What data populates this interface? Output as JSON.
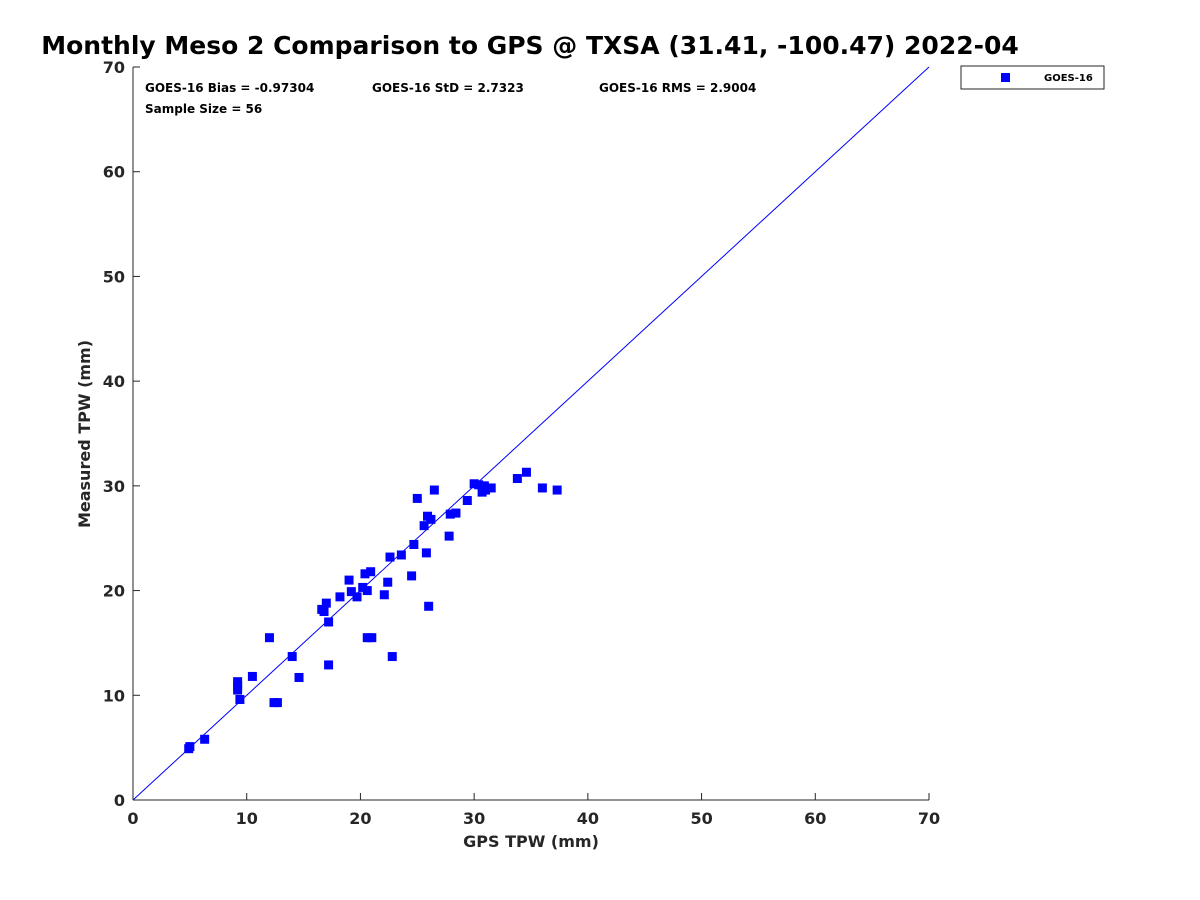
{
  "chart_data": {
    "type": "scatter",
    "title": "Monthly Meso 2 Comparison to GPS @ TXSA (31.41, -100.47) 2022-04",
    "xlabel": "GPS TPW (mm)",
    "ylabel": "Measured TPW (mm)",
    "xlim": [
      0,
      70
    ],
    "ylim": [
      0,
      70
    ],
    "xticks": [
      "0",
      "10",
      "20",
      "30",
      "40",
      "50",
      "60",
      "70"
    ],
    "yticks": [
      "0",
      "10",
      "20",
      "30",
      "40",
      "50",
      "60",
      "70"
    ],
    "grid": false,
    "legend_position": "top-right outside",
    "reference_line": {
      "type": "identity",
      "from": [
        0,
        0
      ],
      "to": [
        70,
        70
      ],
      "color": "#0000ff"
    },
    "annotations": {
      "bias": "GOES-16 Bias = -0.97304",
      "std": "GOES-16 StD = 2.7323",
      "rms": "GOES-16 RMS = 2.9004",
      "sample_size": "Sample Size = 56"
    },
    "series": [
      {
        "name": "GOES-16",
        "color": "#0000ff",
        "marker": "square",
        "points": [
          [
            4.9,
            4.9
          ],
          [
            5.0,
            5.1
          ],
          [
            6.3,
            5.8
          ],
          [
            9.2,
            11.3
          ],
          [
            9.2,
            10.9
          ],
          [
            9.2,
            10.5
          ],
          [
            9.4,
            9.6
          ],
          [
            10.5,
            11.8
          ],
          [
            12.0,
            15.5
          ],
          [
            12.4,
            9.3
          ],
          [
            12.7,
            9.3
          ],
          [
            14.0,
            13.7
          ],
          [
            14.6,
            11.7
          ],
          [
            16.6,
            18.2
          ],
          [
            16.8,
            18.0
          ],
          [
            17.0,
            18.8
          ],
          [
            17.2,
            17.0
          ],
          [
            17.2,
            12.9
          ],
          [
            18.2,
            19.4
          ],
          [
            19.0,
            21.0
          ],
          [
            19.2,
            19.9
          ],
          [
            19.7,
            19.4
          ],
          [
            20.2,
            20.3
          ],
          [
            20.4,
            21.6
          ],
          [
            20.6,
            20.0
          ],
          [
            20.6,
            15.5
          ],
          [
            20.9,
            21.8
          ],
          [
            21.0,
            15.5
          ],
          [
            22.1,
            19.6
          ],
          [
            22.4,
            20.8
          ],
          [
            22.6,
            23.2
          ],
          [
            22.8,
            13.7
          ],
          [
            23.6,
            23.4
          ],
          [
            24.5,
            21.4
          ],
          [
            24.7,
            24.4
          ],
          [
            25.0,
            28.8
          ],
          [
            25.6,
            26.2
          ],
          [
            25.8,
            23.6
          ],
          [
            25.9,
            27.1
          ],
          [
            26.0,
            18.5
          ],
          [
            26.2,
            26.8
          ],
          [
            26.5,
            29.6
          ],
          [
            27.8,
            25.2
          ],
          [
            27.9,
            27.3
          ],
          [
            28.4,
            27.4
          ],
          [
            29.4,
            28.6
          ],
          [
            30.0,
            30.2
          ],
          [
            30.4,
            30.1
          ],
          [
            30.7,
            29.4
          ],
          [
            30.9,
            30.0
          ],
          [
            31.0,
            29.6
          ],
          [
            31.5,
            29.8
          ],
          [
            33.8,
            30.7
          ],
          [
            34.6,
            31.3
          ],
          [
            36.0,
            29.8
          ],
          [
            37.3,
            29.6
          ]
        ]
      }
    ]
  },
  "legend": {
    "label": "GOES-16"
  }
}
